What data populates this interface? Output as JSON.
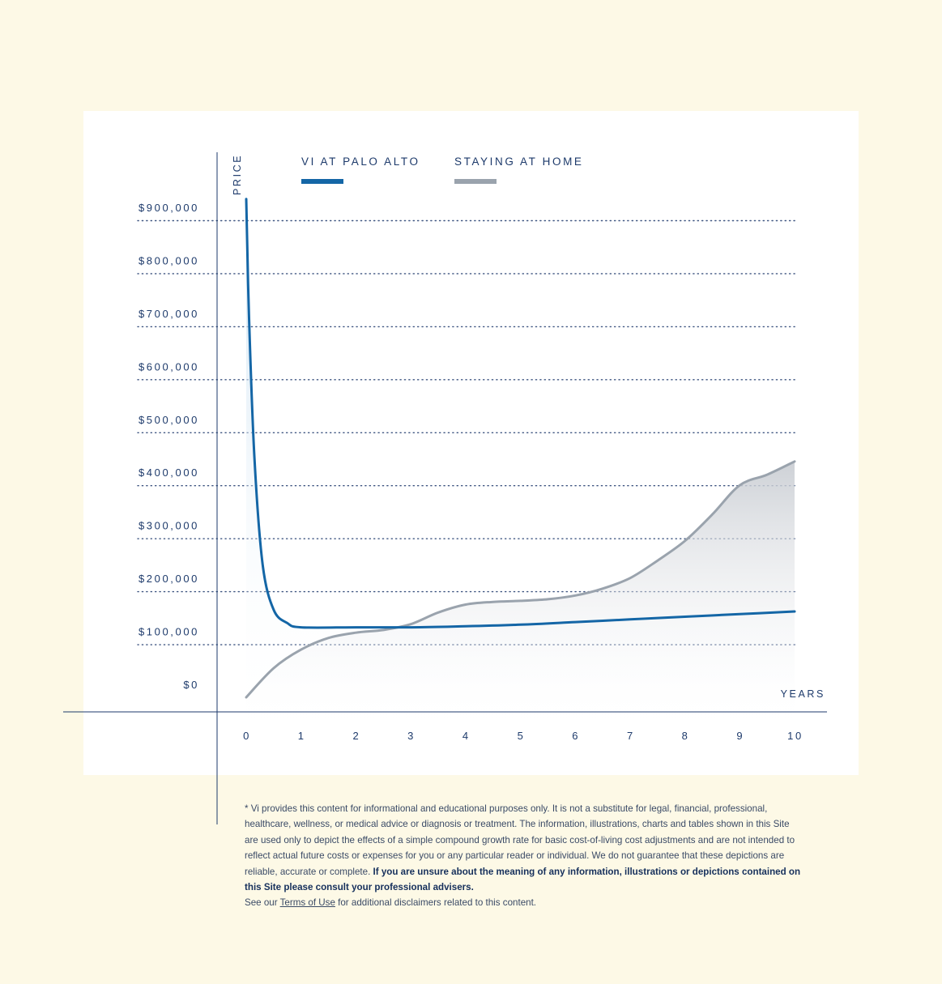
{
  "chart_data": {
    "type": "line",
    "ylabel": "PRICE",
    "xlabel": "YEARS",
    "x": [
      0,
      1,
      2,
      3,
      4,
      5,
      6,
      7,
      8,
      9,
      10
    ],
    "ylim": [
      0,
      900000
    ],
    "xlim": [
      0,
      10
    ],
    "y_ticks": [
      "$0",
      "$100,000",
      "$200,000",
      "$300,000",
      "$400,000",
      "$500,000",
      "$600,000",
      "$700,000",
      "$800,000",
      "$900,000"
    ],
    "x_ticks": [
      "0",
      "1",
      "2",
      "3",
      "4",
      "5",
      "6",
      "7",
      "8",
      "9",
      "10"
    ],
    "grid": "horizontal dotted",
    "legend_position": "top",
    "series": [
      {
        "name": "VI AT PALO ALTO",
        "color": "#1466a6",
        "points": [
          [
            0,
            940000
          ],
          [
            0.05,
            720000
          ],
          [
            0.15,
            450000
          ],
          [
            0.3,
            250000
          ],
          [
            0.5,
            165000
          ],
          [
            0.75,
            140000
          ],
          [
            1,
            132000
          ],
          [
            2,
            132000
          ],
          [
            3,
            132000
          ],
          [
            4,
            134000
          ],
          [
            5,
            137000
          ],
          [
            6,
            142000
          ],
          [
            7,
            147000
          ],
          [
            8,
            152000
          ],
          [
            9,
            157000
          ],
          [
            10,
            162000
          ]
        ]
      },
      {
        "name": "STAYING AT HOME",
        "color": "#9aa3ad",
        "points": [
          [
            0,
            0
          ],
          [
            0.5,
            55000
          ],
          [
            1,
            90000
          ],
          [
            1.5,
            112000
          ],
          [
            2,
            122000
          ],
          [
            2.5,
            127000
          ],
          [
            3,
            138000
          ],
          [
            3.5,
            160000
          ],
          [
            4,
            175000
          ],
          [
            4.5,
            180000
          ],
          [
            5,
            182000
          ],
          [
            5.5,
            185000
          ],
          [
            6,
            192000
          ],
          [
            6.5,
            205000
          ],
          [
            7,
            225000
          ],
          [
            7.5,
            258000
          ],
          [
            8,
            295000
          ],
          [
            8.5,
            345000
          ],
          [
            9,
            400000
          ],
          [
            9.5,
            420000
          ],
          [
            10,
            445000
          ]
        ]
      }
    ]
  },
  "disclaimer": {
    "part1": "* Vi provides this content for informational and educational purposes only. It is not a substitute for legal, financial, professional, healthcare, wellness, or medical advice or diagnosis or treatment. The information, illustrations, charts and tables shown in this Site are used only to depict the effects of a simple compound growth rate for basic cost-of-living cost adjustments and are not intended to reflect actual future costs or expenses for you or any particular reader or individual. We do not guarantee that these depictions are reliable, accurate or complete. ",
    "bold": "If you are unsure about the meaning of any information, illustrations or depictions contained on this Site please consult your professional advisers.",
    "see_our": "See our ",
    "terms_link": "Terms of Use",
    "part2": " for additional disclaimers related to this content."
  }
}
